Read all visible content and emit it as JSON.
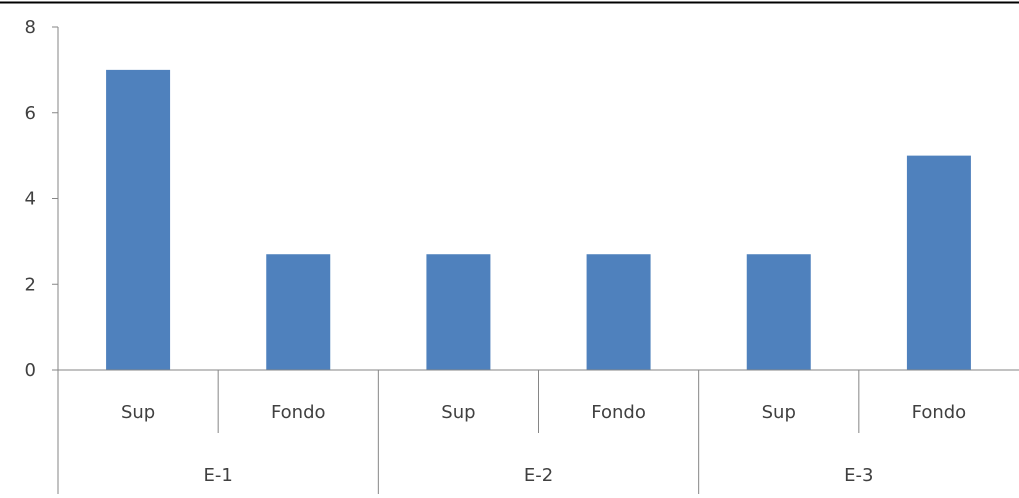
{
  "chart_data": {
    "type": "bar",
    "title": "",
    "xlabel": "",
    "ylabel": "",
    "groups": [
      {
        "label": "E-1",
        "categories": [
          "Sup",
          "Fondo"
        ]
      },
      {
        "label": "E-2",
        "categories": [
          "Sup",
          "Fondo"
        ]
      },
      {
        "label": "E-3",
        "categories": [
          "Sup",
          "Fondo"
        ]
      }
    ],
    "categories": [
      "Sup",
      "Fondo",
      "Sup",
      "Fondo",
      "Sup",
      "Fondo"
    ],
    "values": [
      7,
      2.7,
      2.7,
      2.7,
      2.7,
      5
    ],
    "ylim": [
      0,
      8
    ],
    "yticks": [
      "0",
      "2",
      "4",
      "6",
      "8"
    ],
    "grid": false,
    "legend": "none",
    "bar_color": "#4f81bd",
    "axis_color": "#868686"
  }
}
